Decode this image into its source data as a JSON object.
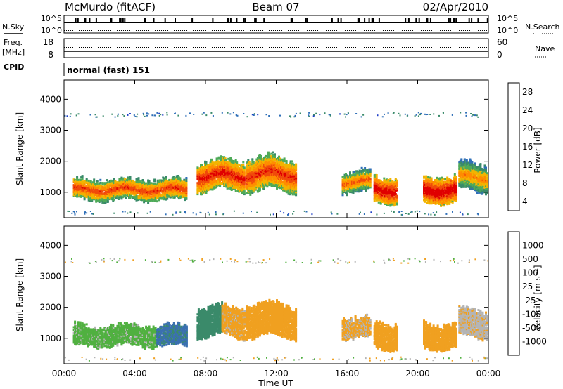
{
  "header": {
    "station": "McMurdo (fitACF)",
    "beam": "Beam 07",
    "date": "02/Apr/2010"
  },
  "sky_panel": {
    "left_label": "N.Sky",
    "left_ticks": [
      "10^5",
      "10^0"
    ],
    "right_ticks": [
      "10^5",
      "10^0"
    ],
    "right_label": "N.Search"
  },
  "freq_panel": {
    "left_label_top": "Freq.",
    "left_label_bottom": "[MHz]",
    "left_ticks": [
      "18",
      "8"
    ],
    "right_ticks": [
      "60",
      "0"
    ],
    "right_label": "Nave"
  },
  "cpid_panel": {
    "label": "CPID",
    "mode_text": "normal (fast) 151"
  },
  "x_axis": {
    "label": "Time UT",
    "ticks": [
      "00:00",
      "04:00",
      "08:00",
      "12:00",
      "16:00",
      "20:00",
      "00:00"
    ]
  },
  "colors": {
    "power": [
      "#1f3fc8",
      "#2f6fb8",
      "#3a8a6a",
      "#4faa58",
      "#f2b400",
      "#ff8c00",
      "#f04a0a",
      "#e00000"
    ],
    "velocity": [
      "#2040c0",
      "#3a70b0",
      "#3a8a6a",
      "#50b040",
      "#b4b4b4",
      "#f0a020",
      "#f07810",
      "#e84010",
      "#e00000"
    ]
  },
  "chart_data": [
    {
      "type": "heatmap",
      "name": "Power",
      "ylabel": "Slant Range [km]",
      "xlabel": "",
      "x_ticks": [
        "00:00",
        "04:00",
        "08:00",
        "12:00",
        "16:00",
        "20:00",
        "00:00"
      ],
      "y_ticks": [
        1000,
        2000,
        3000,
        4000
      ],
      "ylim": [
        180,
        4620
      ],
      "xlim_hours": [
        0,
        24
      ],
      "colorbar": {
        "label": "Power [dB]",
        "ticks": [
          "4",
          "8",
          "12",
          "16",
          "20",
          "24",
          "28"
        ],
        "range": [
          0,
          30
        ]
      },
      "regions": [
        {
          "t0": 0.5,
          "t1": 6.9,
          "rc": 1050,
          "rw": 300,
          "v": 18
        },
        {
          "t0": 7.5,
          "t1": 10.2,
          "rc": 1500,
          "rw": 450,
          "v": 20
        },
        {
          "t0": 10.3,
          "t1": 13.1,
          "rc": 1550,
          "rw": 500,
          "v": 19
        },
        {
          "t0": 15.7,
          "t1": 17.3,
          "rc": 1300,
          "rw": 300,
          "v": 16
        },
        {
          "t0": 17.5,
          "t1": 18.8,
          "rc": 1050,
          "rw": 380,
          "v": 22
        },
        {
          "t0": 20.3,
          "t1": 22.1,
          "rc": 1050,
          "rw": 380,
          "v": 23
        },
        {
          "t0": 22.3,
          "t1": 23.9,
          "rc": 1450,
          "rw": 420,
          "v": 14
        }
      ]
    },
    {
      "type": "heatmap",
      "name": "Velocity",
      "ylabel": "Slant Range [km]",
      "xlabel": "Time UT",
      "x_ticks": [
        "00:00",
        "04:00",
        "08:00",
        "12:00",
        "16:00",
        "20:00",
        "00:00"
      ],
      "y_ticks": [
        1000,
        2000,
        3000,
        4000
      ],
      "ylim": [
        180,
        4620
      ],
      "xlim_hours": [
        0,
        24
      ],
      "colorbar": {
        "label": "Velocity [m s⁻¹]",
        "ticks": [
          "1000",
          "500",
          "100",
          "25",
          "-25",
          "-100",
          "-500",
          "-1000"
        ],
        "range": [
          -1200,
          1200
        ]
      },
      "regions": [
        {
          "t0": 0.5,
          "t1": 5.2,
          "rc": 1050,
          "rw": 300,
          "v": 180
        },
        {
          "t0": 5.2,
          "t1": 6.9,
          "rc": 1050,
          "rw": 300,
          "v": 700
        },
        {
          "t0": 7.5,
          "t1": 8.9,
          "rc": 1500,
          "rw": 450,
          "v": 600
        },
        {
          "t0": 8.9,
          "t1": 10.2,
          "rc": 1500,
          "rw": 450,
          "v": -180
        },
        {
          "t0": 10.3,
          "t1": 13.1,
          "rc": 1550,
          "rw": 500,
          "v": -200
        },
        {
          "t0": 15.7,
          "t1": 17.3,
          "rc": 1300,
          "rw": 300,
          "v": -150
        },
        {
          "t0": 17.5,
          "t1": 18.8,
          "rc": 1050,
          "rw": 380,
          "v": -200
        },
        {
          "t0": 20.3,
          "t1": 22.1,
          "rc": 1050,
          "rw": 380,
          "v": -220
        },
        {
          "t0": 22.3,
          "t1": 23.9,
          "rc": 1450,
          "rw": 420,
          "v": -100
        }
      ]
    }
  ]
}
